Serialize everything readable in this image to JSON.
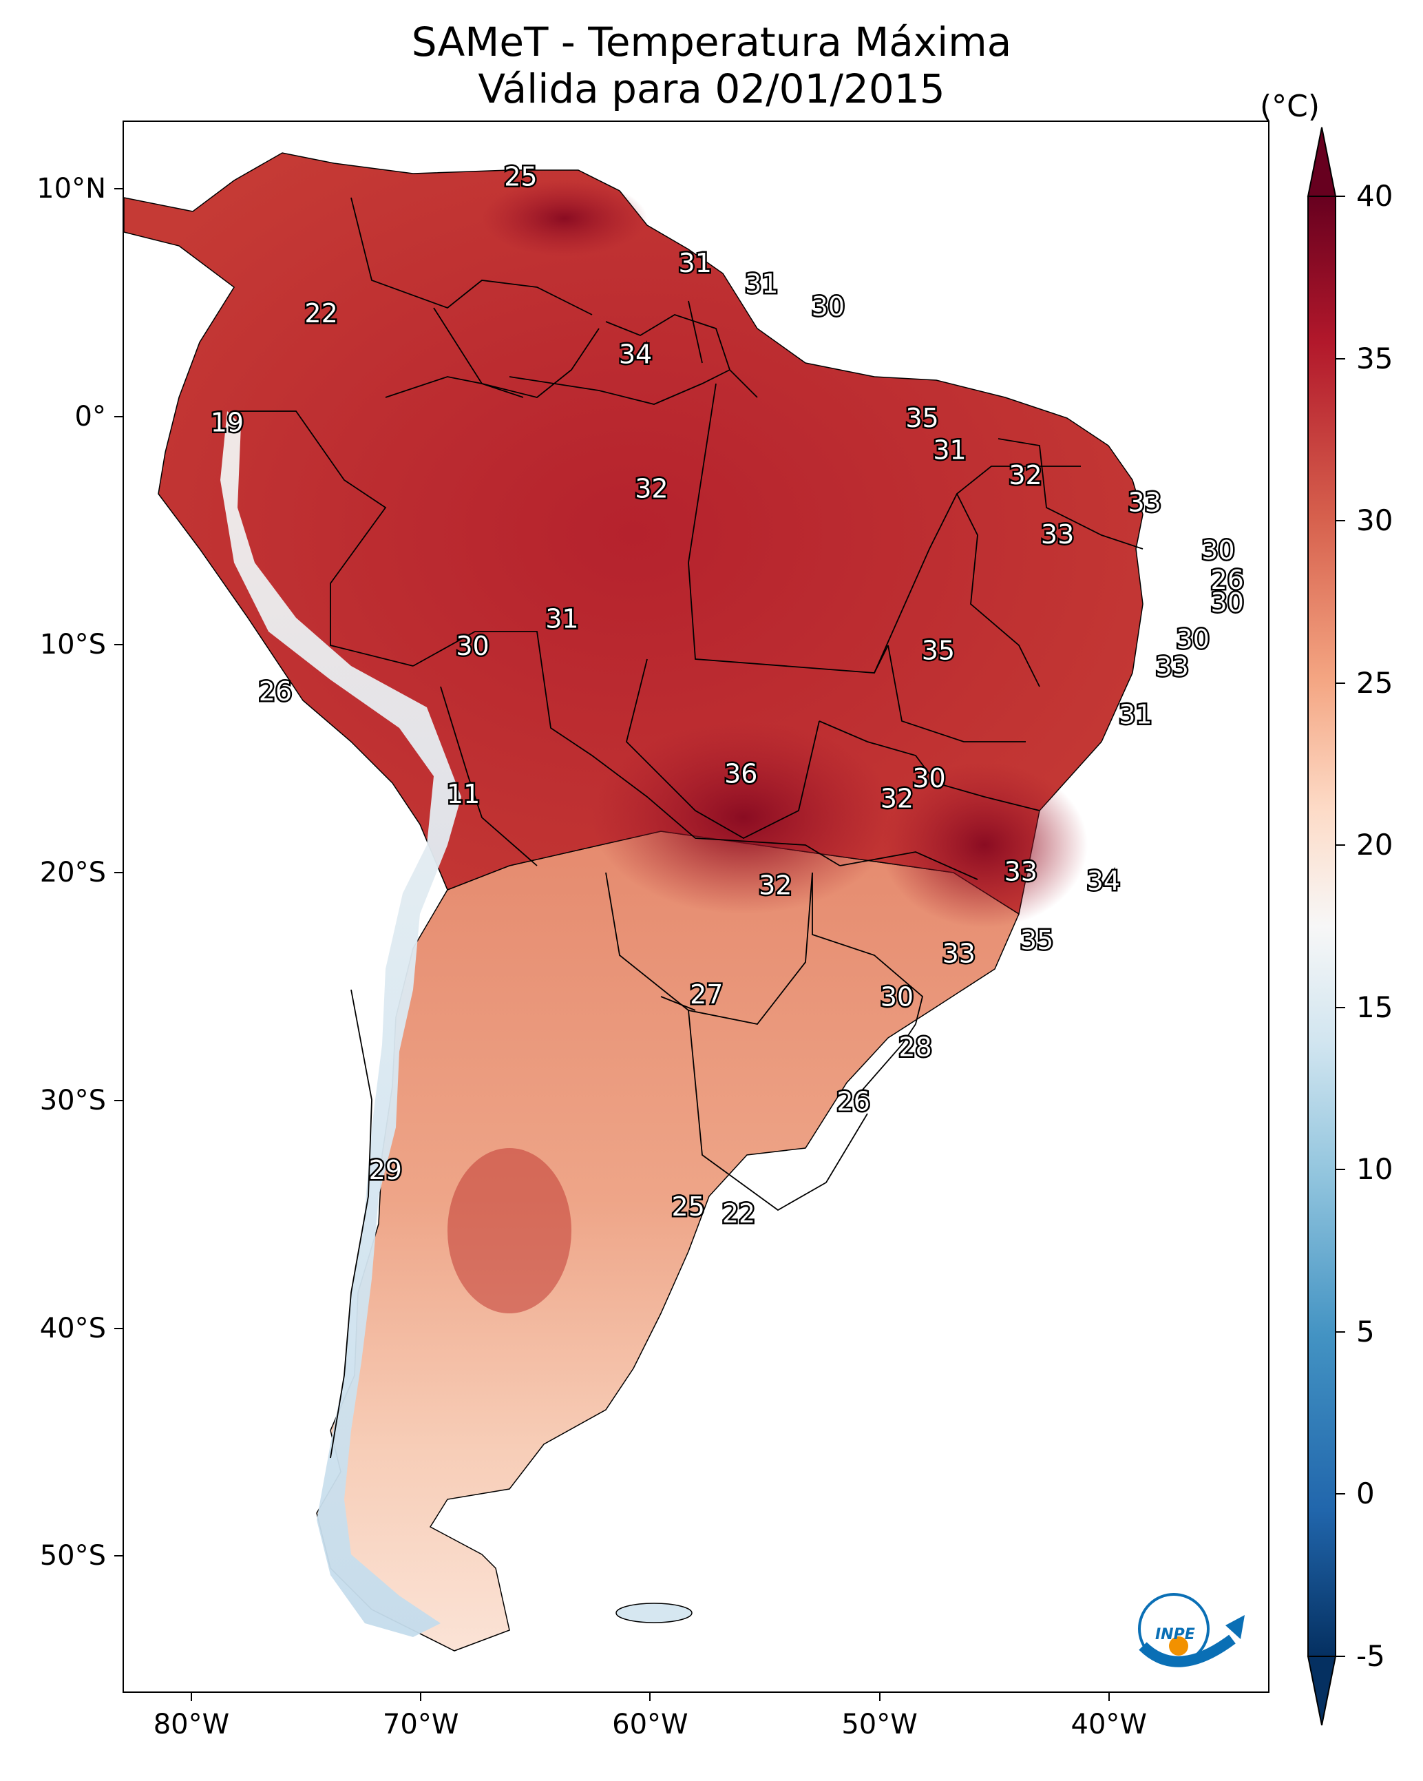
{
  "title": {
    "line1": "SAMeT - Temperatura Máxima",
    "line2": "Válida para 02/01/2015"
  },
  "map": {
    "lon_range": [
      -83,
      -33
    ],
    "lat_range": [
      -56,
      13
    ],
    "lat_ticks": [
      {
        "value": 10,
        "label": "10°N"
      },
      {
        "value": 0,
        "label": "0°"
      },
      {
        "value": -10,
        "label": "10°S"
      },
      {
        "value": -20,
        "label": "20°S"
      },
      {
        "value": -30,
        "label": "30°S"
      },
      {
        "value": -40,
        "label": "40°S"
      },
      {
        "value": -50,
        "label": "50°S"
      }
    ],
    "lon_ticks": [
      {
        "value": -80,
        "label": "80°W"
      },
      {
        "value": -70,
        "label": "70°W"
      },
      {
        "value": -60,
        "label": "60°W"
      },
      {
        "value": -50,
        "label": "50°W"
      },
      {
        "value": -40,
        "label": "40°W"
      }
    ],
    "station_labels": [
      {
        "lon": -65.7,
        "lat": 10.6,
        "value": "25"
      },
      {
        "lon": -74.4,
        "lat": 4.6,
        "value": "22"
      },
      {
        "lon": -78.5,
        "lat": -0.2,
        "value": "19"
      },
      {
        "lon": -58.1,
        "lat": 6.8,
        "value": "31"
      },
      {
        "lon": -55.2,
        "lat": 5.9,
        "value": "31"
      },
      {
        "lon": -52.3,
        "lat": 4.9,
        "value": "30"
      },
      {
        "lon": -60.7,
        "lat": 2.8,
        "value": "34"
      },
      {
        "lon": -48.2,
        "lat": 0.0,
        "value": "35"
      },
      {
        "lon": -60.0,
        "lat": -3.1,
        "value": "32"
      },
      {
        "lon": -47.0,
        "lat": -1.4,
        "value": "31"
      },
      {
        "lon": -43.7,
        "lat": -2.5,
        "value": "32"
      },
      {
        "lon": -38.5,
        "lat": -3.7,
        "value": "33"
      },
      {
        "lon": -42.3,
        "lat": -5.1,
        "value": "33"
      },
      {
        "lon": -35.3,
        "lat": -5.8,
        "value": "30"
      },
      {
        "lon": -34.9,
        "lat": -7.1,
        "value": "26"
      },
      {
        "lon": -34.9,
        "lat": -8.1,
        "value": "30"
      },
      {
        "lon": -36.4,
        "lat": -9.7,
        "value": "30"
      },
      {
        "lon": -37.3,
        "lat": -10.9,
        "value": "33"
      },
      {
        "lon": -38.9,
        "lat": -13.0,
        "value": "31"
      },
      {
        "lon": -47.5,
        "lat": -10.2,
        "value": "35"
      },
      {
        "lon": -63.9,
        "lat": -8.8,
        "value": "31"
      },
      {
        "lon": -67.8,
        "lat": -10.0,
        "value": "30"
      },
      {
        "lon": -76.4,
        "lat": -12.0,
        "value": "26"
      },
      {
        "lon": -68.2,
        "lat": -16.5,
        "value": "11"
      },
      {
        "lon": -56.1,
        "lat": -15.6,
        "value": "36"
      },
      {
        "lon": -47.9,
        "lat": -15.8,
        "value": "30"
      },
      {
        "lon": -49.3,
        "lat": -16.7,
        "value": "32"
      },
      {
        "lon": -54.6,
        "lat": -20.5,
        "value": "32"
      },
      {
        "lon": -43.9,
        "lat": -19.9,
        "value": "33"
      },
      {
        "lon": -40.3,
        "lat": -20.3,
        "value": "34"
      },
      {
        "lon": -43.2,
        "lat": -22.9,
        "value": "35"
      },
      {
        "lon": -46.6,
        "lat": -23.5,
        "value": "33"
      },
      {
        "lon": -49.3,
        "lat": -25.4,
        "value": "30"
      },
      {
        "lon": -57.6,
        "lat": -25.3,
        "value": "27"
      },
      {
        "lon": -48.5,
        "lat": -27.6,
        "value": "28"
      },
      {
        "lon": -51.2,
        "lat": -30.0,
        "value": "26"
      },
      {
        "lon": -71.6,
        "lat": -33.0,
        "value": "29"
      },
      {
        "lon": -58.4,
        "lat": -34.6,
        "value": "25"
      },
      {
        "lon": -56.2,
        "lat": -34.9,
        "value": "22"
      }
    ]
  },
  "colorbar": {
    "unit": "(°C)",
    "range": [
      -5,
      40
    ],
    "tick_values": [
      40,
      35,
      30,
      25,
      20,
      15,
      10,
      5,
      0,
      -5
    ],
    "tick_labels": [
      "40",
      "35",
      "30",
      "25",
      "20",
      "15",
      "10",
      "5",
      "0",
      "-5"
    ],
    "colors": [
      "#053061",
      "#2166ac",
      "#4393c3",
      "#92c5de",
      "#d1e5f0",
      "#f7f7f7",
      "#fddbc7",
      "#f4a582",
      "#d6604d",
      "#b2182b",
      "#67001f"
    ]
  },
  "logo": {
    "text": "INPE",
    "colors": [
      "#0a6fb5",
      "#f29100"
    ]
  }
}
